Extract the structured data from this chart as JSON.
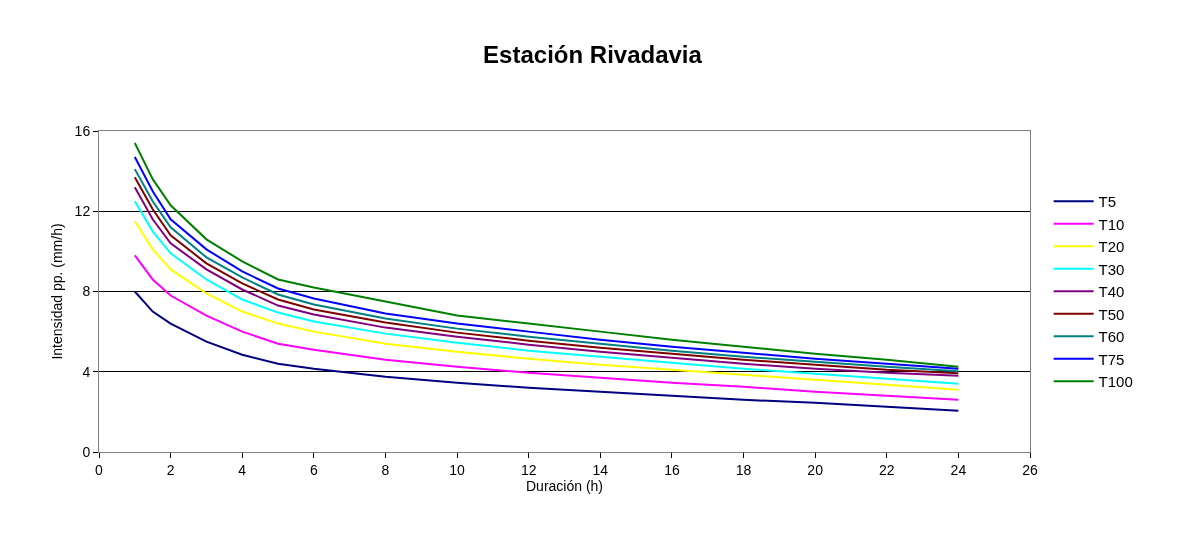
{
  "chart_data": {
    "type": "line",
    "title": "Estación Rivadavia",
    "xlabel": "Duración (h)",
    "ylabel": "Intensidad pp. (mm/h)",
    "x": [
      1,
      1.5,
      2,
      3,
      4,
      5,
      6,
      8,
      10,
      12,
      14,
      16,
      18,
      20,
      22,
      24
    ],
    "series": [
      {
        "name": "T5",
        "color": "#000080",
        "values": [
          8.0,
          7.0,
          6.4,
          5.5,
          4.85,
          4.4,
          4.15,
          3.75,
          3.45,
          3.2,
          3.0,
          2.8,
          2.6,
          2.45,
          2.25,
          2.05
        ]
      },
      {
        "name": "T10",
        "color": "#ff00ff",
        "values": [
          9.8,
          8.6,
          7.8,
          6.8,
          6.0,
          5.4,
          5.1,
          4.6,
          4.25,
          3.95,
          3.7,
          3.45,
          3.25,
          3.0,
          2.8,
          2.6
        ]
      },
      {
        "name": "T20",
        "color": "#ffff00",
        "values": [
          11.5,
          10.1,
          9.1,
          7.9,
          7.0,
          6.4,
          6.0,
          5.4,
          5.0,
          4.65,
          4.35,
          4.1,
          3.85,
          3.6,
          3.35,
          3.1
        ]
      },
      {
        "name": "T30",
        "color": "#00ffff",
        "values": [
          12.5,
          11.0,
          9.9,
          8.6,
          7.6,
          6.95,
          6.5,
          5.9,
          5.45,
          5.05,
          4.75,
          4.45,
          4.15,
          3.9,
          3.65,
          3.4
        ]
      },
      {
        "name": "T40",
        "color": "#800080",
        "values": [
          13.2,
          11.6,
          10.4,
          9.1,
          8.1,
          7.3,
          6.85,
          6.2,
          5.75,
          5.35,
          5.0,
          4.7,
          4.4,
          4.15,
          3.95,
          3.8
        ]
      },
      {
        "name": "T50",
        "color": "#800000",
        "values": [
          13.7,
          12.1,
          10.8,
          9.4,
          8.4,
          7.6,
          7.1,
          6.45,
          5.95,
          5.55,
          5.2,
          4.9,
          4.6,
          4.35,
          4.1,
          3.93
        ]
      },
      {
        "name": "T60",
        "color": "#008080",
        "values": [
          14.1,
          12.5,
          11.2,
          9.7,
          8.7,
          7.85,
          7.35,
          6.65,
          6.15,
          5.75,
          5.4,
          5.05,
          4.75,
          4.5,
          4.25,
          4.03
        ]
      },
      {
        "name": "T75",
        "color": "#0000ff",
        "values": [
          14.7,
          13.0,
          11.6,
          10.1,
          9.0,
          8.15,
          7.65,
          6.9,
          6.4,
          6.0,
          5.6,
          5.25,
          4.95,
          4.65,
          4.4,
          4.15
        ]
      },
      {
        "name": "T100",
        "color": "#008000",
        "values": [
          15.4,
          13.6,
          12.3,
          10.6,
          9.5,
          8.6,
          8.2,
          7.5,
          6.8,
          6.4,
          6.0,
          5.6,
          5.25,
          4.9,
          4.6,
          4.25
        ]
      }
    ],
    "xlim": [
      0,
      26
    ],
    "xticks": [
      0,
      2,
      4,
      6,
      8,
      10,
      12,
      14,
      16,
      18,
      20,
      22,
      24,
      26
    ],
    "ylim": [
      0,
      16
    ],
    "yticks": [
      0,
      4,
      8,
      12,
      16
    ],
    "grid": "y",
    "legend": "right",
    "marker": "none",
    "line_style": "solid"
  }
}
